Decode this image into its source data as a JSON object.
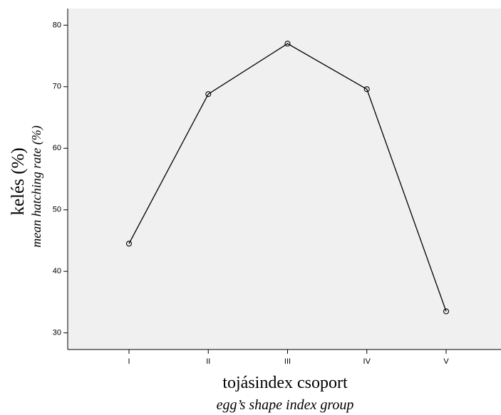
{
  "chart_data": {
    "type": "line",
    "y_label": "kelés (%)",
    "y_label_en": "mean hatching rate (%)",
    "x_label": "tojásindex csoport",
    "x_label_en": "egg’s shape index group",
    "categories": [
      "I",
      "II",
      "III",
      "IV",
      "V"
    ],
    "values": [
      44.5,
      68.8,
      77.0,
      69.6,
      33.5
    ],
    "color": "#000000",
    "ylim": [
      27.3,
      82.7
    ],
    "yticks": [
      30,
      40,
      50,
      60,
      70,
      80
    ]
  }
}
